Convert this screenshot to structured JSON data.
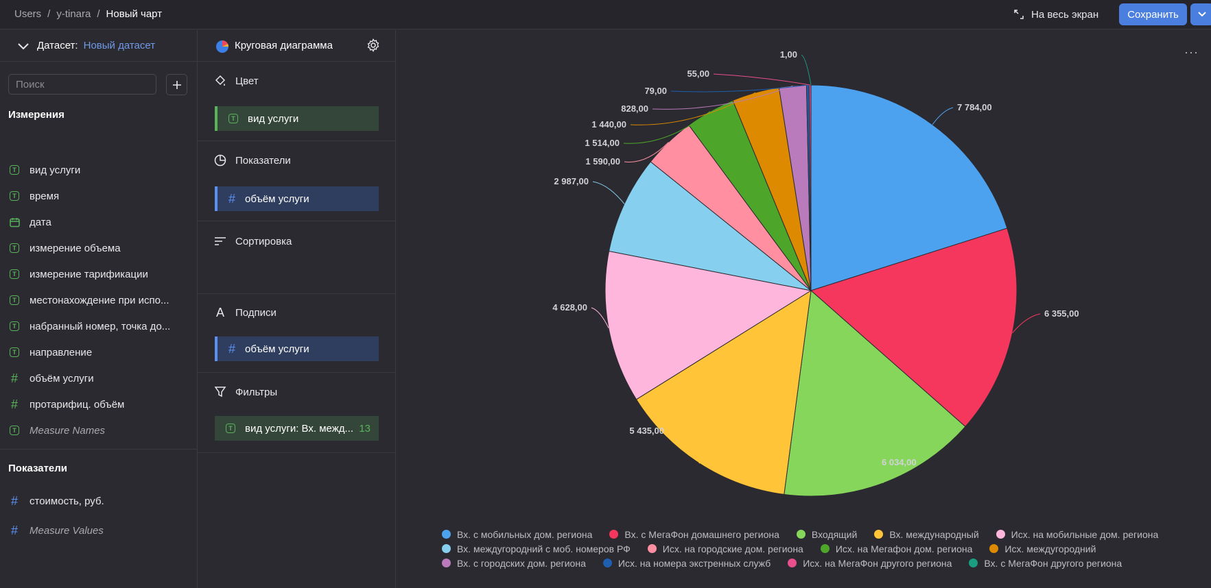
{
  "header": {
    "breadcrumbs": [
      "Users",
      "y-tinara",
      "Новый чарт"
    ],
    "fullscreen_label": "На весь экран",
    "save_label": "Сохранить"
  },
  "dataset": {
    "label": "Датасет:",
    "name": "Новый датасет",
    "search_placeholder": "Поиск"
  },
  "dimensions": {
    "title": "Измерения",
    "items": [
      {
        "label": "вид услуги",
        "type": "text"
      },
      {
        "label": "время",
        "type": "text"
      },
      {
        "label": "дата",
        "type": "date"
      },
      {
        "label": "измерение объема",
        "type": "text"
      },
      {
        "label": "измерение тарификации",
        "type": "text"
      },
      {
        "label": "местонахождение при испо...",
        "type": "text"
      },
      {
        "label": "набранный номер, точка до...",
        "type": "text"
      },
      {
        "label": "направление",
        "type": "text"
      },
      {
        "label": "объём услуги",
        "type": "number"
      },
      {
        "label": "протарифиц. объём",
        "type": "number"
      },
      {
        "label": "Measure Names",
        "type": "text"
      }
    ]
  },
  "measures": {
    "title": "Показатели",
    "items": [
      {
        "label": "стоимость, руб.",
        "type": "number"
      },
      {
        "label": "Measure Values",
        "type": "number"
      }
    ]
  },
  "chart_settings": {
    "chart_type": "Круговая диаграмма",
    "color": {
      "title": "Цвет",
      "field": "вид услуги"
    },
    "measures": {
      "title": "Показатели",
      "field": "объём услуги"
    },
    "sort": {
      "title": "Сортировка"
    },
    "labels": {
      "title": "Подписи",
      "field": "объём услуги"
    },
    "filters": {
      "title": "Фильтры",
      "field": "вид услуги: Вх. межд...",
      "count": "13"
    }
  },
  "chart_data": {
    "type": "pie",
    "categories": [
      "Вх. с мобильных дом. региона",
      "Вх. с МегаФон домашнего региона",
      "Входящий",
      "Вх. международный",
      "Исх. на мобильные дом. региона",
      "Вх. междугородний с моб. номеров РФ",
      "Исх. на городские дом. региона",
      "Исх. на Мегафон дом. региона",
      "Исх. междугородний",
      "Вх. с городских дом. региона",
      "Исх. на номера экстренных служб",
      "Исх. на МегаФон другого региона",
      "Вх. с МегаФон другого региона"
    ],
    "values": [
      7784,
      6355,
      6034,
      5435,
      4628,
      2987,
      1590,
      1514,
      1440,
      828,
      79,
      55,
      1
    ],
    "labels": [
      "7 784,00",
      "6 355,00",
      "6 034,00",
      "5 435,00",
      "4 628,00",
      "2 987,00",
      "1 590,00",
      "1 514,00",
      "1 440,00",
      "828,00",
      "79,00",
      "55,00",
      "1,00"
    ],
    "colors": [
      "#4da2f0",
      "#f5375e",
      "#85d65a",
      "#ffc437",
      "#ffb6dc",
      "#86cfee",
      "#ff8fa1",
      "#4da629",
      "#dd8a00",
      "#b97bbc",
      "#1e5fb0",
      "#ea4f8d",
      "#1a9e81"
    ],
    "legend_position": "bottom"
  }
}
